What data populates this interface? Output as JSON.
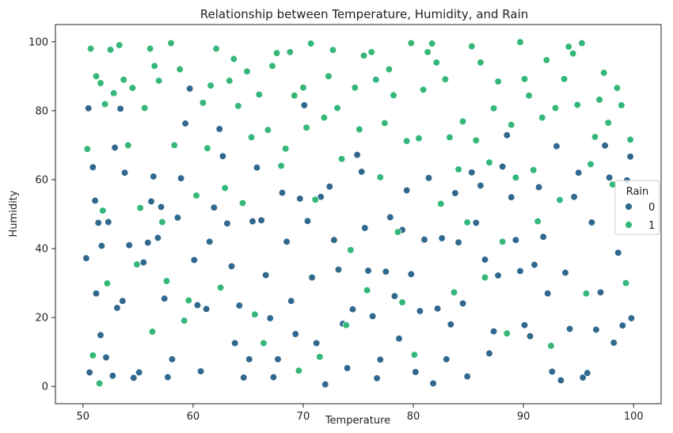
{
  "chart_data": {
    "type": "scatter",
    "title": "Relationship between Temperature, Humidity, and Rain",
    "xlabel": "Temperature",
    "ylabel": "Humidity",
    "xlim": [
      47.5,
      102.5
    ],
    "ylim": [
      -5,
      105
    ],
    "xticks": [
      50,
      60,
      70,
      80,
      90,
      100
    ],
    "yticks": [
      0,
      20,
      40,
      60,
      80,
      100
    ],
    "grid": false,
    "legend": {
      "title": "Rain",
      "placement": "center-right"
    },
    "colors": {
      "0": "#31688e",
      "1": "#35b779"
    },
    "series": [
      {
        "name": "0",
        "points": [
          [
            50.3,
            37.2
          ],
          [
            50.5,
            80.7
          ],
          [
            50.9,
            63.6
          ],
          [
            51.1,
            53.9
          ],
          [
            51.4,
            47.5
          ],
          [
            51.7,
            40.8
          ],
          [
            51.2,
            27.0
          ],
          [
            50.6,
            4.1
          ],
          [
            51.6,
            14.9
          ],
          [
            52.1,
            8.4
          ],
          [
            52.7,
            3.1
          ],
          [
            52.3,
            47.7
          ],
          [
            52.9,
            69.3
          ],
          [
            53.4,
            80.6
          ],
          [
            53.8,
            62.0
          ],
          [
            53.1,
            22.8
          ],
          [
            53.6,
            24.8
          ],
          [
            54.2,
            41.0
          ],
          [
            54.6,
            2.5
          ],
          [
            55.1,
            4.1
          ],
          [
            55.5,
            36.0
          ],
          [
            55.9,
            41.7
          ],
          [
            56.4,
            60.9
          ],
          [
            56.2,
            53.7
          ],
          [
            56.8,
            43.1
          ],
          [
            57.1,
            52.1
          ],
          [
            57.4,
            25.5
          ],
          [
            57.7,
            2.7
          ],
          [
            58.1,
            7.9
          ],
          [
            58.6,
            49.0
          ],
          [
            58.9,
            60.4
          ],
          [
            59.3,
            76.3
          ],
          [
            59.7,
            86.4
          ],
          [
            60.1,
            36.7
          ],
          [
            60.4,
            23.6
          ],
          [
            60.7,
            4.4
          ],
          [
            61.2,
            22.5
          ],
          [
            61.5,
            42.0
          ],
          [
            61.9,
            51.9
          ],
          [
            62.4,
            74.7
          ],
          [
            62.7,
            66.8
          ],
          [
            63.1,
            47.3
          ],
          [
            63.5,
            34.9
          ],
          [
            63.8,
            12.6
          ],
          [
            64.2,
            23.5
          ],
          [
            64.6,
            2.6
          ],
          [
            65.1,
            7.9
          ],
          [
            65.4,
            47.9
          ],
          [
            65.8,
            63.5
          ],
          [
            66.2,
            48.2
          ],
          [
            66.6,
            32.3
          ],
          [
            67.0,
            19.8
          ],
          [
            67.3,
            2.7
          ],
          [
            67.7,
            7.9
          ],
          [
            68.1,
            56.2
          ],
          [
            68.5,
            42.0
          ],
          [
            68.9,
            24.8
          ],
          [
            69.3,
            15.2
          ],
          [
            69.7,
            54.5
          ],
          [
            70.1,
            81.6
          ],
          [
            70.4,
            48.0
          ],
          [
            70.8,
            31.6
          ],
          [
            71.2,
            12.6
          ],
          [
            71.6,
            55.0
          ],
          [
            72.0,
            0.6
          ],
          [
            72.4,
            58.0
          ],
          [
            72.8,
            42.5
          ],
          [
            73.2,
            33.9
          ],
          [
            73.6,
            18.2
          ],
          [
            74.0,
            5.3
          ],
          [
            74.5,
            22.4
          ],
          [
            74.9,
            67.2
          ],
          [
            75.3,
            62.3
          ],
          [
            75.6,
            46.0
          ],
          [
            75.9,
            33.6
          ],
          [
            76.3,
            20.4
          ],
          [
            76.7,
            2.4
          ],
          [
            77.0,
            7.8
          ],
          [
            77.5,
            33.3
          ],
          [
            77.9,
            49.1
          ],
          [
            78.3,
            26.2
          ],
          [
            78.7,
            13.9
          ],
          [
            79.0,
            45.4
          ],
          [
            79.4,
            56.9
          ],
          [
            79.8,
            32.6
          ],
          [
            80.2,
            4.2
          ],
          [
            80.6,
            21.9
          ],
          [
            81.0,
            42.6
          ],
          [
            81.4,
            60.5
          ],
          [
            81.8,
            0.9
          ],
          [
            82.2,
            22.6
          ],
          [
            82.6,
            43.0
          ],
          [
            83.0,
            7.9
          ],
          [
            83.4,
            18.0
          ],
          [
            83.8,
            56.1
          ],
          [
            84.1,
            41.8
          ],
          [
            84.5,
            24.1
          ],
          [
            84.9,
            2.9
          ],
          [
            85.3,
            62.1
          ],
          [
            85.7,
            47.5
          ],
          [
            86.1,
            58.3
          ],
          [
            86.5,
            36.8
          ],
          [
            86.9,
            9.6
          ],
          [
            87.3,
            16.0
          ],
          [
            87.7,
            32.2
          ],
          [
            88.1,
            63.8
          ],
          [
            88.5,
            72.9
          ],
          [
            88.9,
            54.9
          ],
          [
            89.3,
            42.5
          ],
          [
            89.7,
            33.5
          ],
          [
            90.1,
            17.8
          ],
          [
            90.6,
            14.6
          ],
          [
            91.0,
            35.3
          ],
          [
            91.4,
            57.8
          ],
          [
            91.8,
            43.4
          ],
          [
            92.2,
            27.0
          ],
          [
            92.6,
            4.3
          ],
          [
            93.0,
            69.7
          ],
          [
            93.4,
            1.8
          ],
          [
            93.8,
            33.0
          ],
          [
            94.2,
            16.7
          ],
          [
            94.6,
            55.0
          ],
          [
            95.0,
            62.0
          ],
          [
            95.4,
            2.6
          ],
          [
            95.8,
            3.9
          ],
          [
            96.2,
            47.6
          ],
          [
            96.6,
            16.5
          ],
          [
            97.0,
            27.3
          ],
          [
            97.4,
            69.9
          ],
          [
            97.8,
            60.6
          ],
          [
            98.2,
            12.7
          ],
          [
            98.6,
            38.8
          ],
          [
            99.0,
            17.7
          ],
          [
            99.4,
            59.8
          ],
          [
            99.7,
            66.7
          ],
          [
            99.8,
            19.8
          ]
        ]
      },
      {
        "name": "1",
        "points": [
          [
            50.4,
            68.9
          ],
          [
            50.7,
            98.0
          ],
          [
            51.2,
            90.0
          ],
          [
            51.6,
            88.0
          ],
          [
            52.0,
            81.9
          ],
          [
            51.8,
            51.0
          ],
          [
            52.2,
            29.9
          ],
          [
            50.9,
            9.0
          ],
          [
            51.5,
            0.9
          ],
          [
            52.5,
            97.7
          ],
          [
            52.8,
            85.1
          ],
          [
            53.3,
            99.0
          ],
          [
            53.7,
            89.0
          ],
          [
            54.1,
            70.0
          ],
          [
            54.5,
            86.6
          ],
          [
            54.9,
            35.4
          ],
          [
            55.2,
            51.8
          ],
          [
            55.6,
            80.8
          ],
          [
            56.1,
            98.0
          ],
          [
            56.5,
            93.0
          ],
          [
            56.3,
            15.9
          ],
          [
            56.9,
            88.7
          ],
          [
            57.2,
            47.7
          ],
          [
            57.6,
            30.6
          ],
          [
            58.0,
            99.6
          ],
          [
            58.3,
            70.0
          ],
          [
            58.8,
            92.0
          ],
          [
            59.2,
            19.1
          ],
          [
            59.6,
            25.0
          ],
          [
            60.3,
            55.4
          ],
          [
            60.9,
            82.3
          ],
          [
            61.3,
            69.1
          ],
          [
            61.6,
            87.3
          ],
          [
            62.1,
            98.0
          ],
          [
            62.5,
            28.7
          ],
          [
            62.9,
            57.6
          ],
          [
            63.3,
            88.7
          ],
          [
            63.7,
            95.0
          ],
          [
            64.1,
            81.4
          ],
          [
            64.5,
            53.2
          ],
          [
            64.9,
            91.4
          ],
          [
            65.3,
            72.3
          ],
          [
            65.6,
            20.9
          ],
          [
            66.0,
            84.7
          ],
          [
            66.4,
            12.6
          ],
          [
            66.8,
            74.4
          ],
          [
            67.2,
            93.0
          ],
          [
            67.6,
            96.7
          ],
          [
            68.0,
            64.0
          ],
          [
            68.4,
            69.0
          ],
          [
            68.8,
            97.0
          ],
          [
            69.2,
            84.4
          ],
          [
            69.6,
            4.6
          ],
          [
            70.0,
            86.7
          ],
          [
            70.3,
            75.1
          ],
          [
            70.7,
            99.5
          ],
          [
            71.1,
            54.2
          ],
          [
            71.5,
            8.6
          ],
          [
            71.9,
            78.0
          ],
          [
            72.3,
            90.0
          ],
          [
            72.7,
            97.6
          ],
          [
            73.1,
            80.8
          ],
          [
            73.5,
            66.0
          ],
          [
            73.9,
            17.8
          ],
          [
            74.3,
            39.6
          ],
          [
            74.7,
            86.7
          ],
          [
            75.1,
            74.6
          ],
          [
            75.5,
            96.0
          ],
          [
            75.8,
            27.9
          ],
          [
            76.2,
            97.0
          ],
          [
            76.6,
            89.0
          ],
          [
            77.0,
            60.7
          ],
          [
            77.4,
            76.4
          ],
          [
            77.8,
            92.0
          ],
          [
            78.2,
            84.5
          ],
          [
            78.6,
            44.8
          ],
          [
            79.0,
            24.4
          ],
          [
            79.4,
            71.2
          ],
          [
            79.8,
            99.6
          ],
          [
            80.1,
            9.2
          ],
          [
            80.5,
            72.0
          ],
          [
            80.9,
            86.1
          ],
          [
            81.3,
            97.0
          ],
          [
            81.7,
            99.5
          ],
          [
            82.1,
            94.0
          ],
          [
            82.5,
            53.0
          ],
          [
            82.9,
            89.1
          ],
          [
            83.3,
            72.3
          ],
          [
            83.7,
            27.3
          ],
          [
            84.1,
            63.0
          ],
          [
            84.5,
            76.9
          ],
          [
            84.9,
            47.6
          ],
          [
            85.3,
            98.7
          ],
          [
            85.7,
            71.4
          ],
          [
            86.1,
            94.0
          ],
          [
            86.5,
            31.6
          ],
          [
            86.9,
            65.0
          ],
          [
            87.3,
            80.7
          ],
          [
            87.7,
            88.5
          ],
          [
            88.1,
            42.0
          ],
          [
            88.5,
            15.4
          ],
          [
            88.9,
            75.9
          ],
          [
            89.3,
            60.6
          ],
          [
            89.7,
            99.9
          ],
          [
            90.1,
            89.2
          ],
          [
            90.5,
            84.4
          ],
          [
            90.9,
            62.8
          ],
          [
            91.3,
            47.9
          ],
          [
            91.7,
            78.0
          ],
          [
            92.1,
            94.7
          ],
          [
            92.5,
            11.8
          ],
          [
            92.9,
            80.8
          ],
          [
            93.3,
            54.1
          ],
          [
            93.7,
            89.2
          ],
          [
            94.1,
            98.6
          ],
          [
            94.5,
            96.6
          ],
          [
            94.9,
            81.7
          ],
          [
            95.3,
            99.6
          ],
          [
            95.7,
            27.0
          ],
          [
            96.1,
            64.5
          ],
          [
            96.5,
            72.4
          ],
          [
            96.9,
            83.2
          ],
          [
            97.3,
            91.0
          ],
          [
            97.7,
            76.5
          ],
          [
            98.1,
            58.6
          ],
          [
            98.5,
            86.6
          ],
          [
            98.9,
            81.6
          ],
          [
            99.3,
            30.0
          ],
          [
            99.7,
            71.6
          ],
          [
            99.5,
            46.6
          ]
        ]
      }
    ]
  }
}
